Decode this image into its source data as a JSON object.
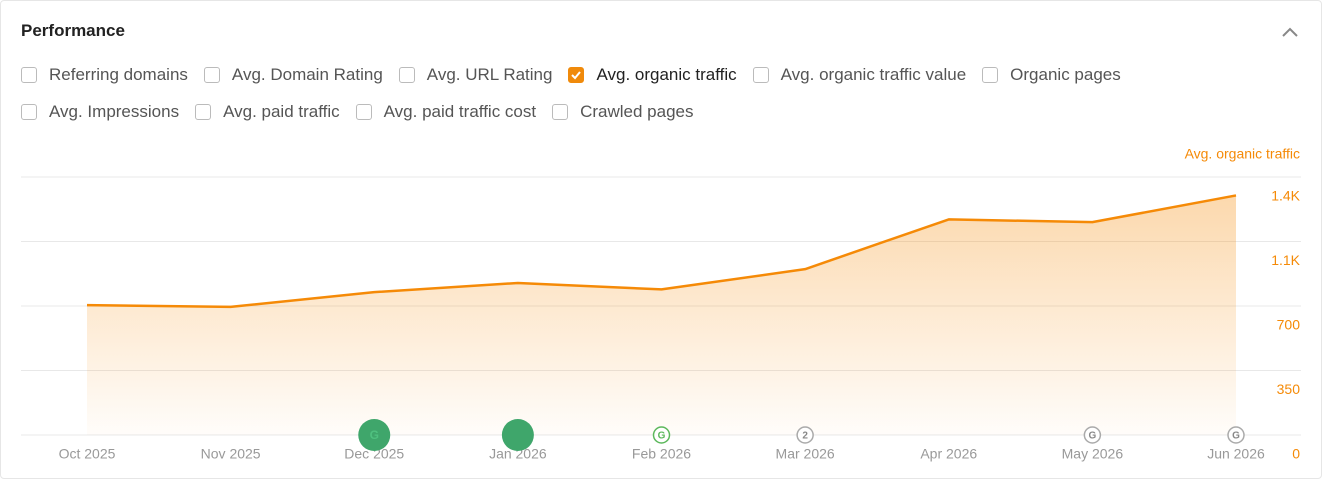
{
  "header": {
    "title": "Performance"
  },
  "metrics": [
    {
      "label": "Referring domains",
      "checked": false
    },
    {
      "label": "Avg. Domain Rating",
      "checked": false
    },
    {
      "label": "Avg. URL Rating",
      "checked": false
    },
    {
      "label": "Avg. organic traffic",
      "checked": true
    },
    {
      "label": "Avg. organic traffic value",
      "checked": false
    },
    {
      "label": "Organic pages",
      "checked": false
    },
    {
      "label": "Avg. Impressions",
      "checked": false
    },
    {
      "label": "Avg. paid traffic",
      "checked": false
    },
    {
      "label": "Avg. paid traffic cost",
      "checked": false
    },
    {
      "label": "Crawled pages",
      "checked": false
    }
  ],
  "chart_data": {
    "type": "area",
    "categories": [
      "Oct 2025",
      "Nov 2025",
      "Dec 2025",
      "Jan 2026",
      "Feb 2026",
      "Mar 2026",
      "Apr 2026",
      "May 2026",
      "Jun 2026"
    ],
    "series": [
      {
        "name": "Avg. organic traffic",
        "color": "#f58a07",
        "values": [
          705,
          695,
          775,
          825,
          790,
          900,
          1170,
          1155,
          1300
        ]
      }
    ],
    "ylim": [
      0,
      1400
    ],
    "yticks": [
      0,
      350,
      700,
      {
        "value": 1050,
        "label": "1.1K"
      },
      {
        "value": 1400,
        "label": "1.4K"
      }
    ],
    "grid": true,
    "events": [
      {
        "category": "Dec 2025",
        "label": "G",
        "color": "#3fa66b",
        "size": "large"
      },
      {
        "category": "Jan 2026",
        "color": "#3fa66b",
        "size": "large"
      },
      {
        "category": "Feb 2026",
        "label": "G",
        "color": "#5cb85c",
        "size": "small"
      },
      {
        "category": "Mar 2026",
        "label": "2",
        "color": "#aaaaaa",
        "size": "small"
      },
      {
        "category": "May 2026",
        "label": "G",
        "color": "#aaaaaa",
        "size": "small"
      },
      {
        "category": "Jun 2026",
        "label": "G",
        "color": "#aaaaaa",
        "size": "small"
      }
    ]
  }
}
